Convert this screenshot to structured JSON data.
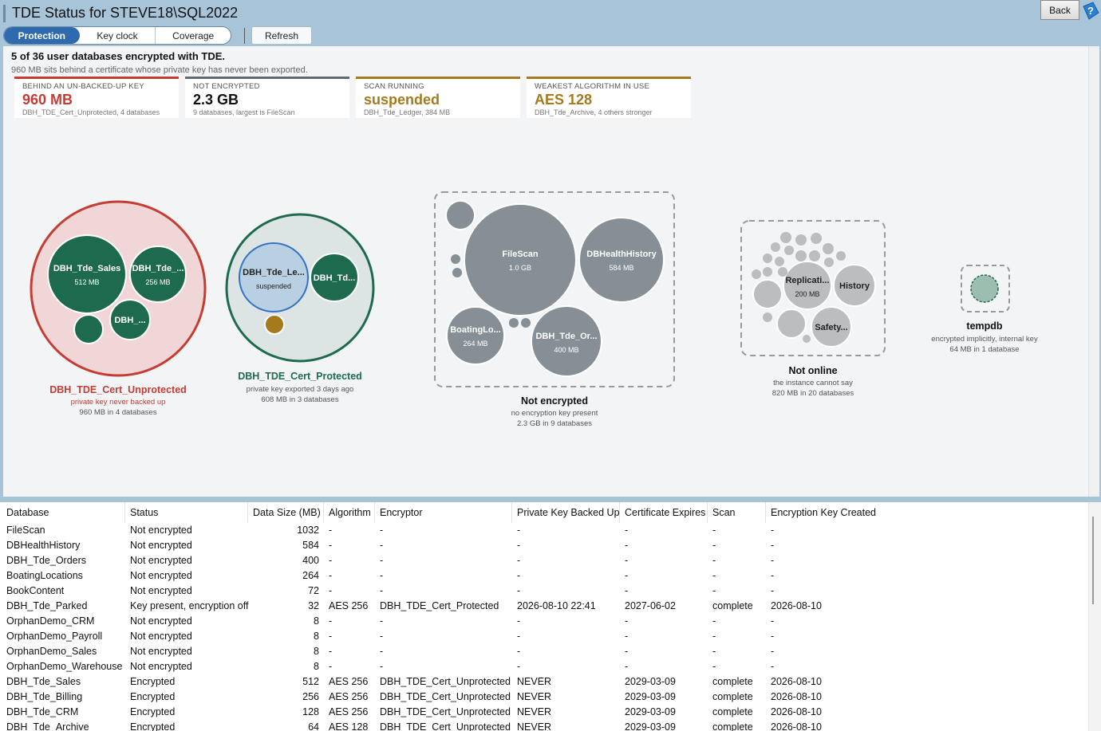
{
  "window": {
    "title": "TDE Status for STEVE18\\SQL2022",
    "back_label": "Back",
    "help_icon": "help-icon"
  },
  "tabs": [
    {
      "label": "Protection",
      "active": true
    },
    {
      "label": "Key clock",
      "active": false
    },
    {
      "label": "Coverage",
      "active": false
    }
  ],
  "toolbar": {
    "refresh_label": "Refresh"
  },
  "summary": {
    "headline": "5 of 36 user databases encrypted with TDE.",
    "subline": "960 MB sits behind a certificate whose private key has never been exported."
  },
  "cards": [
    {
      "label": "BEHIND AN UN-BACKED-UP KEY",
      "value": "960 MB",
      "sub": "DBH_TDE_Cert_Unprotected, 4 databases",
      "color": "#c43c32"
    },
    {
      "label": "NOT ENCRYPTED",
      "value": "2.3 GB",
      "sub": "9 databases, largest is FileScan",
      "color": "#606a73"
    },
    {
      "label": "SCAN RUNNING",
      "value": "suspended",
      "sub": "DBH_Tde_Ledger, 384 MB",
      "color": "#a57a1c"
    },
    {
      "label": "WEAKEST ALGORITHM IN USE",
      "value": "AES 128",
      "sub": "DBH_Tde_Archive, 4 others stronger",
      "color": "#a57a1c"
    }
  ],
  "groups": {
    "unprotected": {
      "title": "DBH_TDE_Cert_Unprotected",
      "note": "private key never backed up",
      "size": "960 MB in 4 databases",
      "bubbles": [
        {
          "name": "DBH_Tde_Sales",
          "size": "512 MB"
        },
        {
          "name": "DBH_Tde_...",
          "size": "256 MB"
        },
        {
          "name": "DBH_...",
          "size": ""
        }
      ]
    },
    "protected": {
      "title": "DBH_TDE_Cert_Protected",
      "note": "private key exported 3 days ago",
      "size": "608 MB in 3 databases",
      "bubbles": [
        {
          "name": "DBH_Tde_Le...",
          "size": "suspended"
        },
        {
          "name": "DBH_Td...",
          "size": ""
        }
      ]
    },
    "not_encrypted": {
      "title": "Not encrypted",
      "note": "no encryption key present",
      "size": "2.3 GB in 9 databases",
      "bubbles": [
        {
          "name": "FileScan",
          "size": "1.0 GB"
        },
        {
          "name": "DBHealthHistory",
          "size": "584 MB"
        },
        {
          "name": "BoatingLo...",
          "size": "264 MB"
        },
        {
          "name": "DBH_Tde_Or...",
          "size": "400 MB"
        }
      ]
    },
    "not_online": {
      "title": "Not online",
      "note": "the instance cannot say",
      "size": "820 MB in 20 databases",
      "bubbles": [
        {
          "name": "Replicati...",
          "size": "200 MB"
        },
        {
          "name": "History",
          "size": ""
        },
        {
          "name": "Safety...",
          "size": ""
        }
      ]
    },
    "tempdb": {
      "title": "tempdb",
      "note": "encrypted implicitly, internal key",
      "size": "64 MB in 1 database"
    }
  },
  "colors": {
    "unprotected": "#c43c32",
    "protected": "#1e6a4e",
    "not_encrypted": "#868f95",
    "amber": "#a57a1c"
  },
  "table": {
    "columns": [
      "Database",
      "Status",
      "Data Size (MB)",
      "Algorithm",
      "Encryptor",
      "Private Key Backed Up",
      "Certificate Expires",
      "Scan",
      "Encryption Key Created"
    ],
    "rows": [
      [
        "FileScan",
        "Not encrypted",
        "1032",
        "-",
        "-",
        "-",
        "-",
        "-",
        "-"
      ],
      [
        "DBHealthHistory",
        "Not encrypted",
        "584",
        "-",
        "-",
        "-",
        "-",
        "-",
        "-"
      ],
      [
        "DBH_Tde_Orders",
        "Not encrypted",
        "400",
        "-",
        "-",
        "-",
        "-",
        "-",
        "-"
      ],
      [
        "BoatingLocations",
        "Not encrypted",
        "264",
        "-",
        "-",
        "-",
        "-",
        "-",
        "-"
      ],
      [
        "BookContent",
        "Not encrypted",
        "72",
        "-",
        "-",
        "-",
        "-",
        "-",
        "-"
      ],
      [
        "DBH_Tde_Parked",
        "Key present, encryption off",
        "32",
        "AES 256",
        "DBH_TDE_Cert_Protected",
        "2026-08-10 22:41",
        "2027-06-02",
        "complete",
        "2026-08-10"
      ],
      [
        "OrphanDemo_CRM",
        "Not encrypted",
        "8",
        "-",
        "-",
        "-",
        "-",
        "-",
        "-"
      ],
      [
        "OrphanDemo_Payroll",
        "Not encrypted",
        "8",
        "-",
        "-",
        "-",
        "-",
        "-",
        "-"
      ],
      [
        "OrphanDemo_Sales",
        "Not encrypted",
        "8",
        "-",
        "-",
        "-",
        "-",
        "-",
        "-"
      ],
      [
        "OrphanDemo_Warehouse",
        "Not encrypted",
        "8",
        "-",
        "-",
        "-",
        "-",
        "-",
        "-"
      ],
      [
        "DBH_Tde_Sales",
        "Encrypted",
        "512",
        "AES 256",
        "DBH_TDE_Cert_Unprotected",
        "NEVER",
        "2029-03-09",
        "complete",
        "2026-08-10"
      ],
      [
        "DBH_Tde_Billing",
        "Encrypted",
        "256",
        "AES 256",
        "DBH_TDE_Cert_Unprotected",
        "NEVER",
        "2029-03-09",
        "complete",
        "2026-08-10"
      ],
      [
        "DBH_Tde_CRM",
        "Encrypted",
        "128",
        "AES 256",
        "DBH_TDE_Cert_Unprotected",
        "NEVER",
        "2029-03-09",
        "complete",
        "2026-08-10"
      ],
      [
        "DBH_Tde_Archive",
        "Encrypted",
        "64",
        "AES 128",
        "DBH_TDE_Cert_Unprotected",
        "NEVER",
        "2029-03-09",
        "complete",
        "2026-08-10"
      ]
    ]
  }
}
